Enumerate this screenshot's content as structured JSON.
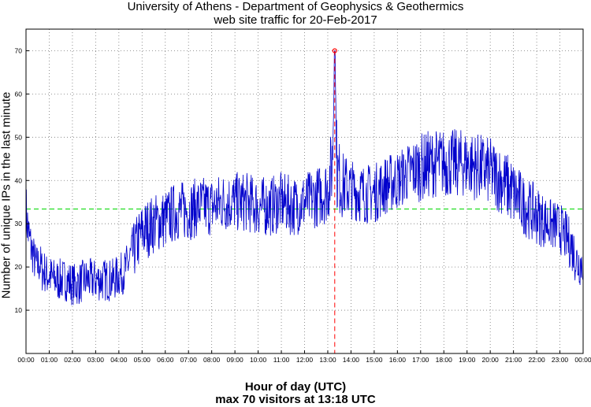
{
  "chart_data": {
    "type": "line",
    "title": "University of Athens - Department of Geophysics & Geothermics",
    "subtitle": "web site traffic for 20-Feb-2017",
    "xlabel": "Hour of day (UTC)",
    "xlabel_note": "max 70 visitors at 13:18 UTC",
    "ylabel": "Number of unique IPs in the last minute",
    "xlim": [
      0,
      24
    ],
    "ylim": [
      0,
      75
    ],
    "x_ticks": [
      "00:00",
      "01:00",
      "02:00",
      "03:00",
      "04:00",
      "05:00",
      "06:00",
      "07:00",
      "08:00",
      "09:00",
      "10:00",
      "11:00",
      "12:00",
      "13:00",
      "14:00",
      "15:00",
      "16:00",
      "17:00",
      "18:00",
      "19:00",
      "20:00",
      "21:00",
      "22:00",
      "23:00",
      "00:00"
    ],
    "y_ticks": [
      10,
      20,
      30,
      40,
      50,
      60,
      70
    ],
    "grid": true,
    "mean_line": {
      "value": 33.4,
      "color": "#22dd22"
    },
    "max_marker": {
      "x": 13.3,
      "y": 70,
      "color": "#ff0000"
    },
    "series": [
      {
        "color": "#0000cc",
        "x": [
          0.0,
          0.1,
          0.2,
          0.3,
          0.4,
          0.5,
          0.6,
          0.7,
          0.8,
          0.9,
          1.0,
          1.25,
          1.5,
          1.75,
          2.0,
          2.25,
          2.5,
          2.75,
          3.0,
          3.25,
          3.5,
          3.75,
          4.0,
          4.25,
          4.5,
          4.75,
          5.0,
          5.5,
          6.0,
          6.5,
          7.0,
          7.5,
          8.0,
          8.5,
          9.0,
          9.5,
          10.0,
          10.5,
          11.0,
          11.5,
          12.0,
          12.5,
          13.0,
          13.2,
          13.3,
          13.4,
          13.6,
          14.0,
          14.5,
          15.0,
          15.5,
          16.0,
          16.5,
          17.0,
          17.5,
          18.0,
          18.5,
          19.0,
          19.5,
          20.0,
          20.5,
          21.0,
          21.5,
          22.0,
          22.5,
          23.0,
          23.25,
          23.5,
          23.75,
          24.0
        ],
        "values": [
          33,
          28,
          25,
          23,
          21,
          20,
          21,
          19,
          19,
          18,
          18,
          17,
          17,
          17,
          16,
          16,
          17,
          17,
          17,
          17,
          17,
          17,
          18,
          19,
          22,
          25,
          28,
          30,
          31,
          33,
          33,
          34,
          34,
          35,
          35,
          35,
          34,
          34,
          35,
          34,
          35,
          36,
          38,
          44,
          70,
          42,
          39,
          38,
          37,
          37,
          39,
          40,
          42,
          43,
          44,
          44,
          44,
          44,
          43,
          42,
          40,
          37,
          34,
          32,
          30,
          29,
          27,
          25,
          21,
          21
        ],
        "noise": [
          7,
          6,
          6,
          5,
          5,
          5,
          5,
          5,
          5,
          5,
          5,
          5,
          5,
          5,
          5,
          5,
          5,
          5,
          5,
          5,
          5,
          5,
          5,
          5,
          6,
          7,
          7,
          7,
          7,
          7,
          7,
          7,
          7,
          7,
          7,
          7,
          7,
          7,
          7,
          7,
          7,
          7,
          8,
          10,
          0,
          10,
          8,
          7,
          7,
          7,
          7,
          7,
          7,
          8,
          8,
          8,
          8,
          8,
          8,
          8,
          8,
          8,
          7,
          7,
          6,
          6,
          6,
          6,
          6,
          5
        ]
      }
    ]
  }
}
